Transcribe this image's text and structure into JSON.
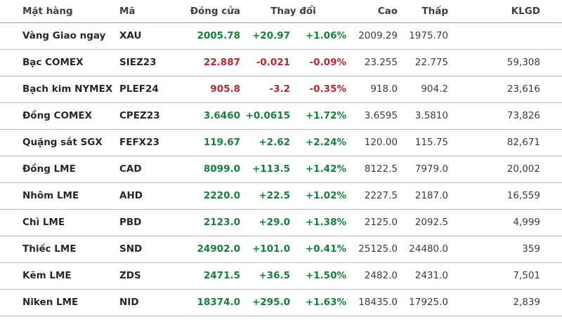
{
  "table": {
    "columns": {
      "name": "Mặt hàng",
      "code": "Mã",
      "close": "Đóng cửa",
      "change": "Thay đổi",
      "high": "Cao",
      "low": "Thấp",
      "volume": "KLGD"
    },
    "colors": {
      "up": "#118339",
      "down": "#c0252b"
    },
    "rows": [
      {
        "name": "Vàng Giao ngay",
        "code": "XAU",
        "close": "2005.78",
        "change": "+20.97",
        "change_pct": "+1.06%",
        "high": "2009.29",
        "low": "1975.70",
        "volume": "",
        "direction": "up"
      },
      {
        "name": "Bạc COMEX",
        "code": "SIEZ23",
        "close": "22.887",
        "change": "-0.021",
        "change_pct": "-0.09%",
        "high": "23.255",
        "low": "22.775",
        "volume": "59,308",
        "direction": "down"
      },
      {
        "name": "Bạch kim NYMEX",
        "code": "PLEF24",
        "close": "905.8",
        "change": "-3.2",
        "change_pct": "-0.35%",
        "high": "918.0",
        "low": "904.2",
        "volume": "23,616",
        "direction": "down"
      },
      {
        "name": "Đồng COMEX",
        "code": "CPEZ23",
        "close": "3.6460",
        "change": "+0.0615",
        "change_pct": "+1.72%",
        "high": "3.6595",
        "low": "3.5810",
        "volume": "73,826",
        "direction": "up"
      },
      {
        "name": "Quặng sắt SGX",
        "code": "FEFX23",
        "close": "119.67",
        "change": "+2.62",
        "change_pct": "+2.24%",
        "high": "120.00",
        "low": "115.75",
        "volume": "82,671",
        "direction": "up"
      },
      {
        "name": "Đồng LME",
        "code": "CAD",
        "close": "8099.0",
        "change": "+113.5",
        "change_pct": "+1.42%",
        "high": "8122.5",
        "low": "7979.0",
        "volume": "20,002",
        "direction": "up"
      },
      {
        "name": "Nhôm LME",
        "code": "AHD",
        "close": "2220.0",
        "change": "+22.5",
        "change_pct": "+1.02%",
        "high": "2227.5",
        "low": "2187.0",
        "volume": "16,559",
        "direction": "up"
      },
      {
        "name": "Chì LME",
        "code": "PBD",
        "close": "2123.0",
        "change": "+29.0",
        "change_pct": "+1.38%",
        "high": "2125.0",
        "low": "2092.5",
        "volume": "4,999",
        "direction": "up"
      },
      {
        "name": "Thiếc LME",
        "code": "SND",
        "close": "24902.0",
        "change": "+101.0",
        "change_pct": "+0.41%",
        "high": "25125.0",
        "low": "24480.0",
        "volume": "359",
        "direction": "up"
      },
      {
        "name": "Kẽm LME",
        "code": "ZDS",
        "close": "2471.5",
        "change": "+36.5",
        "change_pct": "+1.50%",
        "high": "2482.0",
        "low": "2431.0",
        "volume": "7,501",
        "direction": "up"
      },
      {
        "name": "Niken LME",
        "code": "NID",
        "close": "18374.0",
        "change": "+295.0",
        "change_pct": "+1.63%",
        "high": "18435.0",
        "low": "17925.0",
        "volume": "2,839",
        "direction": "up"
      }
    ]
  }
}
